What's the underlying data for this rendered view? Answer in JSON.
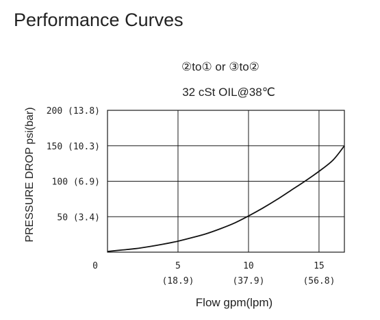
{
  "page": {
    "title": "Performance Curves"
  },
  "chart_data": {
    "type": "line",
    "subtitle_flow_path": "②to① or ③to②",
    "subtitle_condition": "32 cSt OIL@38℃",
    "xlabel": "Flow gpm(lpm)",
    "ylabel": "PRESSURE DROP psi(bar)",
    "xlim": [
      0,
      16.8
    ],
    "ylim": [
      0,
      200
    ],
    "x_ticks": [
      {
        "value": 0,
        "label": "0",
        "sub": ""
      },
      {
        "value": 5,
        "label": "5",
        "sub": "(18.9)"
      },
      {
        "value": 10,
        "label": "10",
        "sub": "(37.9)"
      },
      {
        "value": 15,
        "label": "15",
        "sub": "(56.8)"
      }
    ],
    "y_ticks": [
      {
        "value": 50,
        "label": "50 (3.4)"
      },
      {
        "value": 100,
        "label": "100 (6.9)"
      },
      {
        "value": 150,
        "label": "150 (10.3)"
      },
      {
        "value": 200,
        "label": "200 (13.8)"
      }
    ],
    "grid": true,
    "series": [
      {
        "x": [
          0,
          1,
          2,
          3,
          4,
          5,
          6,
          7,
          8,
          9,
          10,
          11,
          12,
          13,
          14,
          15,
          16,
          16.8
        ],
        "y": [
          1,
          3,
          5,
          8,
          11.5,
          15.5,
          20.5,
          26,
          33,
          41,
          51,
          62,
          74,
          87,
          100,
          114,
          130,
          150
        ]
      }
    ]
  },
  "colors": {
    "axis": "#1a1a1a",
    "grid": "#1a1a1a",
    "curve": "#111111"
  }
}
